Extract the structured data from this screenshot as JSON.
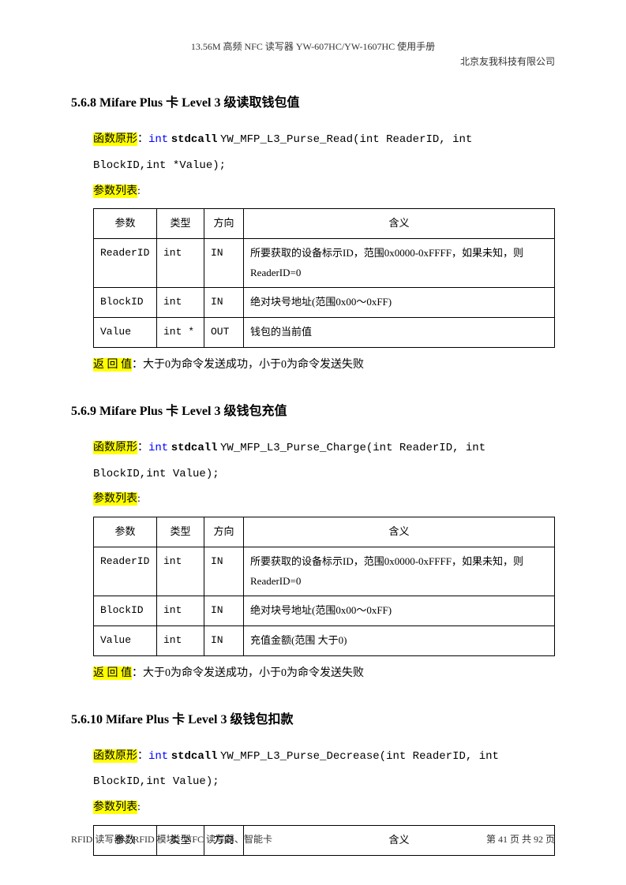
{
  "header": {
    "title": "13.56M 高频 NFC 读写器 YW-607HC/YW-1607HC 使用手册",
    "company": "北京友我科技有限公司"
  },
  "sections": [
    {
      "num": "5.6.8",
      "title": "Mifare Plus 卡 Level 3 级读取钱包值",
      "func_label": "函数原形",
      "func_int": "int",
      "func_stdcall": "stdcall",
      "func_name": "YW_MFP_L3_Purse_Read",
      "func_sig": "(int ReaderID, int",
      "func_sig2": "BlockID,int *Value);",
      "param_label": "参数列表",
      "headers": [
        "参数",
        "类型",
        "方向",
        "含义"
      ],
      "rows": [
        [
          "ReaderID",
          "int",
          "IN",
          "所要获取的设备标示ID，范围0x0000-0xFFFF，如果未知，则ReaderID=0"
        ],
        [
          "BlockID",
          "int",
          "IN",
          "绝对块号地址(范围0x00～0xFF)"
        ],
        [
          "Value",
          "int *",
          "OUT",
          "钱包的当前值"
        ]
      ],
      "return_label": "返 回 值",
      "return_text": "：大于0为命令发送成功，小于0为命令发送失败"
    },
    {
      "num": "5.6.9",
      "title": "Mifare Plus 卡 Level 3 级钱包充值",
      "func_label": "函数原形",
      "func_int": "int",
      "func_stdcall": "stdcall",
      "func_name": "YW_MFP_L3_Purse_Charge",
      "func_sig": "(int ReaderID, int",
      "func_sig2": "BlockID,int Value);",
      "param_label": "参数列表",
      "headers": [
        "参数",
        "类型",
        "方向",
        "含义"
      ],
      "rows": [
        [
          "ReaderID",
          "int",
          "IN",
          "所要获取的设备标示ID，范围0x0000-0xFFFF，如果未知，则ReaderID=0"
        ],
        [
          "BlockID",
          "int",
          "IN",
          "绝对块号地址(范围0x00～0xFF)"
        ],
        [
          "Value",
          "int",
          "IN",
          "充值金额(范围 大于0)"
        ]
      ],
      "return_label": "返 回 值",
      "return_text": "：大于0为命令发送成功，小于0为命令发送失败"
    },
    {
      "num": "5.6.10",
      "title": "Mifare Plus 卡 Level 3 级钱包扣款",
      "func_label": "函数原形",
      "func_int": "int",
      "func_stdcall": "stdcall",
      "func_name": "YW_MFP_L3_Purse_Decrease",
      "func_sig": "(int ReaderID, int",
      "func_sig2": "BlockID,int Value);",
      "param_label": "参数列表",
      "headers": [
        "参数",
        "类型",
        "方向",
        "含义"
      ],
      "rows": []
    }
  ],
  "footer": {
    "left": "RFID 读写器、RFID 模块、NFC 读写器、智能卡",
    "right": "第 41 页 共 92 页"
  }
}
